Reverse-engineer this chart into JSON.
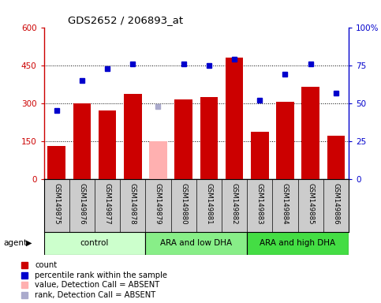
{
  "title": "GDS2652 / 206893_at",
  "samples": [
    "GSM149875",
    "GSM149876",
    "GSM149877",
    "GSM149878",
    "GSM149879",
    "GSM149880",
    "GSM149881",
    "GSM149882",
    "GSM149883",
    "GSM149884",
    "GSM149885",
    "GSM149886"
  ],
  "bar_values": [
    130,
    300,
    270,
    335,
    null,
    315,
    325,
    480,
    185,
    305,
    365,
    170
  ],
  "bar_absent_values": [
    null,
    null,
    null,
    null,
    150,
    null,
    null,
    null,
    null,
    null,
    null,
    null
  ],
  "dot_values": [
    270,
    390,
    435,
    455,
    null,
    455,
    450,
    475,
    310,
    415,
    455,
    340
  ],
  "dot_absent_values": [
    null,
    null,
    null,
    null,
    285,
    null,
    null,
    null,
    null,
    null,
    null,
    null
  ],
  "bar_color": "#cc0000",
  "bar_absent_color": "#ffb0b0",
  "dot_color": "#0000cc",
  "dot_absent_color": "#aaaacc",
  "ylim_left": [
    0,
    600
  ],
  "yticks_left": [
    0,
    150,
    300,
    450,
    600
  ],
  "ytick_labels_left": [
    "0",
    "150",
    "300",
    "450",
    "600"
  ],
  "ytick_labels_right": [
    "0",
    "25",
    "50",
    "75",
    "100%"
  ],
  "groups": [
    {
      "label": "control",
      "start": 0,
      "end": 3,
      "color": "#ccffcc"
    },
    {
      "label": "ARA and low DHA",
      "start": 4,
      "end": 7,
      "color": "#88ee88"
    },
    {
      "label": "ARA and high DHA",
      "start": 8,
      "end": 11,
      "color": "#44dd44"
    }
  ],
  "agent_label": "agent",
  "plot_bg_color": "#ffffff",
  "sample_bg_color": "#cccccc",
  "legend_items": [
    {
      "color": "#cc0000",
      "label": "count"
    },
    {
      "color": "#0000cc",
      "label": "percentile rank within the sample"
    },
    {
      "color": "#ffb0b0",
      "label": "value, Detection Call = ABSENT"
    },
    {
      "color": "#aaaacc",
      "label": "rank, Detection Call = ABSENT"
    }
  ]
}
